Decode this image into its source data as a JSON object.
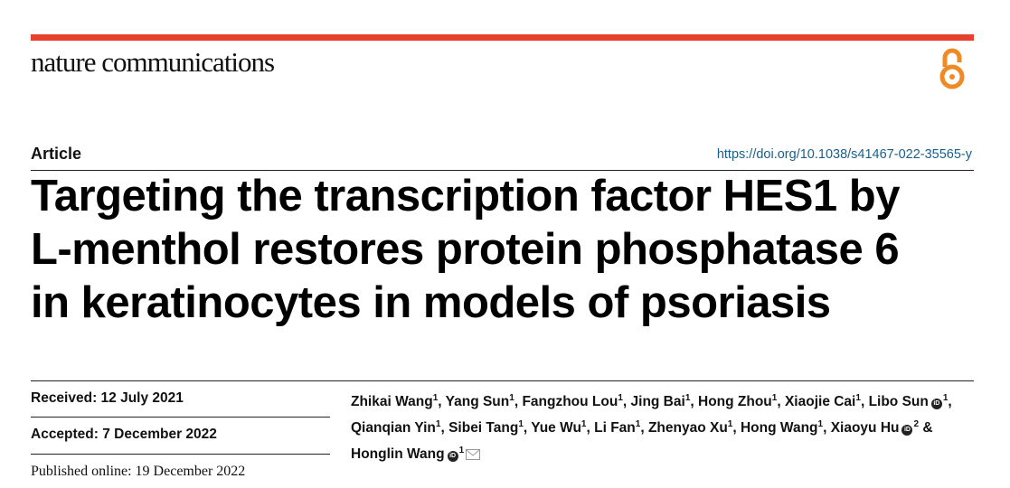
{
  "header": {
    "journal": "nature communications",
    "open_access_icon": "open-access-icon",
    "accent_color": "#e8402f"
  },
  "article": {
    "label": "Article",
    "doi": "https://doi.org/10.1038/s41467-022-35565-y",
    "title_lines": [
      "Targeting the transcription factor HES1 by",
      "L-menthol restores protein phosphatase 6",
      "in keratinocytes in models of psoriasis"
    ]
  },
  "dates": {
    "received": "Received: 12 July 2021",
    "accepted": "Accepted: 7 December 2022",
    "published": "Published online: 19 December 2022"
  },
  "authors": [
    {
      "name": "Zhikai Wang",
      "aff": "1"
    },
    {
      "name": "Yang Sun",
      "aff": "1"
    },
    {
      "name": "Fangzhou Lou",
      "aff": "1"
    },
    {
      "name": "Jing Bai",
      "aff": "1"
    },
    {
      "name": "Hong Zhou",
      "aff": "1"
    },
    {
      "name": "Xiaojie Cai",
      "aff": "1"
    },
    {
      "name": "Libo Sun",
      "aff": "1",
      "orcid": true
    },
    {
      "name": "Qianqian Yin",
      "aff": "1"
    },
    {
      "name": "Sibei Tang",
      "aff": "1"
    },
    {
      "name": "Yue Wu",
      "aff": "1"
    },
    {
      "name": "Li Fan",
      "aff": "1"
    },
    {
      "name": "Zhenyao Xu",
      "aff": "1"
    },
    {
      "name": "Hong Wang",
      "aff": "1"
    },
    {
      "name": "Xiaoyu Hu",
      "aff": "2",
      "orcid": true
    },
    {
      "name": "Honglin Wang",
      "aff": "1",
      "orcid": true,
      "corresponding": true
    }
  ],
  "separators": {
    "comma": ", ",
    "final": " & "
  }
}
